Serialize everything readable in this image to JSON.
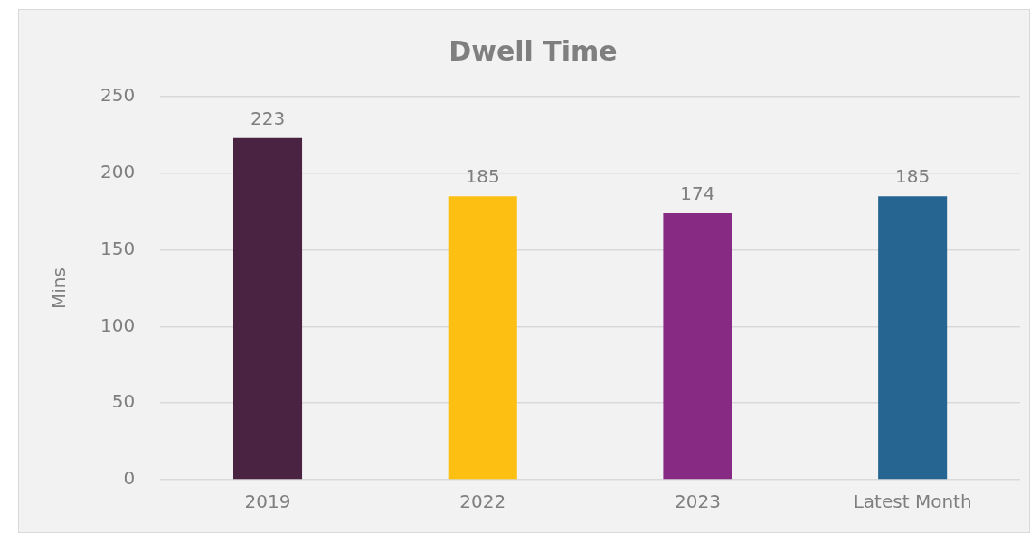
{
  "chart_data": {
    "type": "bar",
    "title": "Dwell Time",
    "ylabel": "Mins",
    "categories": [
      "2019",
      "2022",
      "2023",
      "Latest Month"
    ],
    "values": [
      223,
      185,
      174,
      185
    ],
    "colors": [
      "#4a2242",
      "#fcbf12",
      "#862a84",
      "#266591"
    ],
    "ylim": [
      0,
      250
    ],
    "yticks": [
      0,
      50,
      100,
      150,
      200,
      250
    ],
    "grid": "y",
    "data_labels": true
  }
}
